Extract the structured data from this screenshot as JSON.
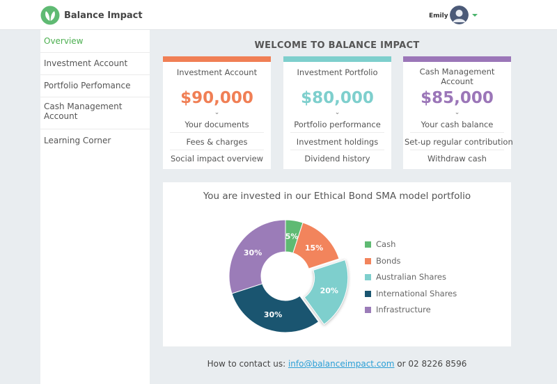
{
  "header": {
    "brand": "Balance Impact",
    "user_name": "Emily"
  },
  "sidebar": {
    "items": [
      {
        "label": "Overview",
        "active": true
      },
      {
        "label": "Investment Account",
        "active": false
      },
      {
        "label": "Portfolio Perfomance",
        "active": false
      },
      {
        "label": "Cash Management Account",
        "active": false
      },
      {
        "label": "Learning Corner",
        "active": false
      }
    ]
  },
  "main": {
    "title": "WELCOME TO BALANCE IMPACT",
    "cards": [
      {
        "title": "Investment Account",
        "amount": "$90,000",
        "color": "#f07f55",
        "links": [
          "Your documents",
          "Fees & charges",
          "Social impact overview"
        ]
      },
      {
        "title": "Investment Portfolio",
        "amount": "$80,000",
        "color": "#7ecfcd",
        "links": [
          "Portfolio performance",
          "Investment holdings",
          "Dividend history"
        ]
      },
      {
        "title": "Cash Management Account",
        "amount": "$85,000",
        "color": "#9b76b8",
        "links": [
          "Your cash balance",
          "Set-up regular contribution",
          "Withdraw cash"
        ]
      }
    ]
  },
  "chart_data": {
    "type": "pie",
    "title": "You are invested in our Ethical Bond SMA model portfolio",
    "legend_position": "right",
    "categories": [
      "Cash",
      "Bonds",
      "Australian Shares",
      "International Shares",
      "Infrastructure"
    ],
    "values": [
      5,
      15,
      20,
      30,
      30
    ],
    "labels": [
      "5%",
      "15%",
      "20%",
      "30%",
      "30%"
    ],
    "colors": [
      "#5fba73",
      "#f2845c",
      "#7ecfcd",
      "#1a5570",
      "#9b7cb8"
    ],
    "exploded": "Australian Shares"
  },
  "footer": {
    "prefix": "How to contact us: ",
    "email": "info@balanceimpact.com",
    "middle": " or ",
    "phone": "02 8226 8596"
  }
}
